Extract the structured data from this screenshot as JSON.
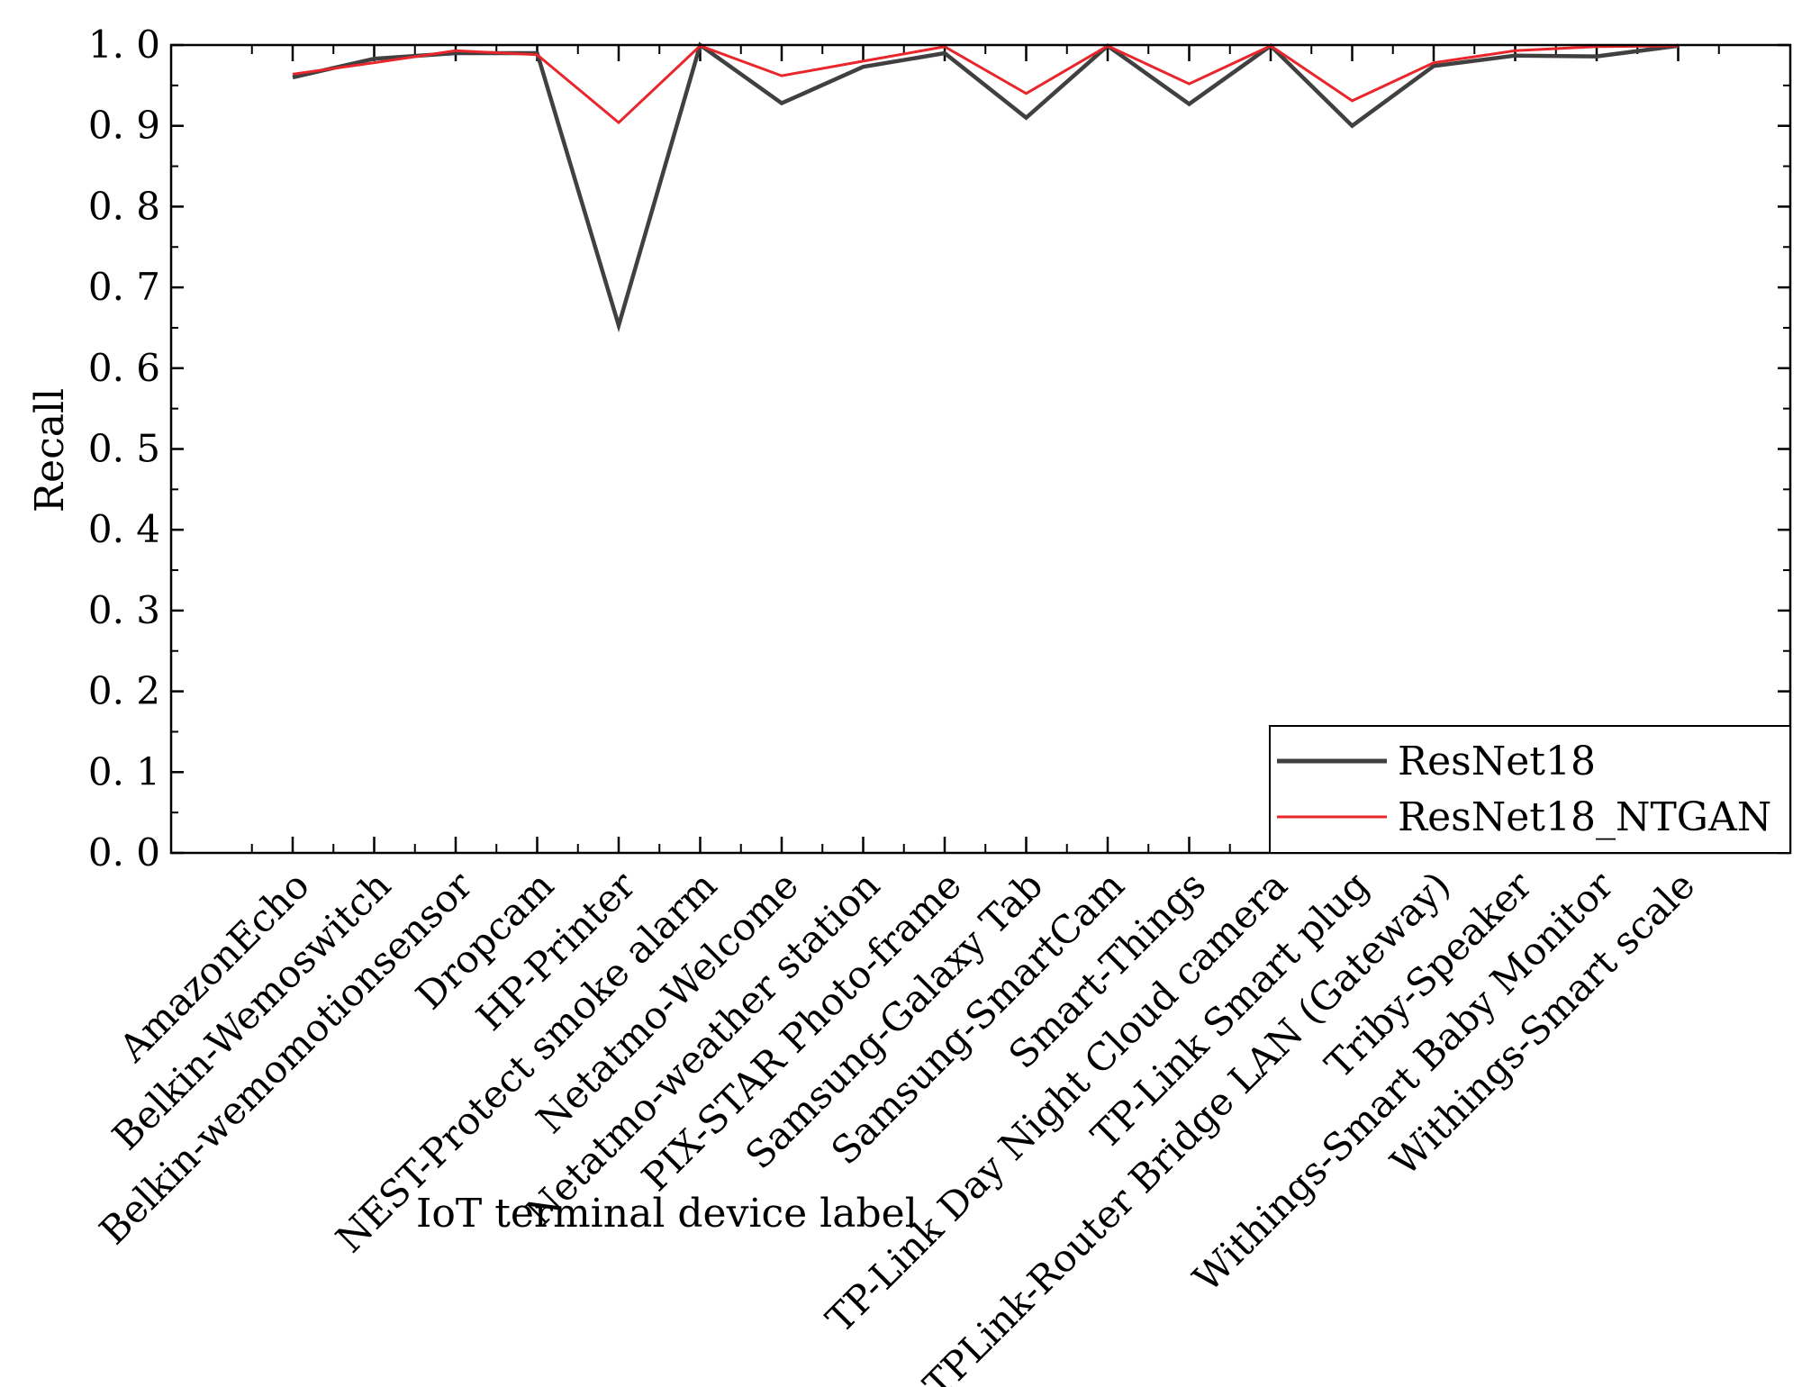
{
  "chart_data": {
    "type": "line",
    "title": "",
    "xlabel": "IoT terminal device label",
    "ylabel": "Recall",
    "ylim": [
      0,
      1.0
    ],
    "yticks": [
      0.0,
      0.1,
      0.2,
      0.3,
      0.4,
      0.5,
      0.6,
      0.7,
      0.8,
      0.9,
      1.0
    ],
    "ytick_labels": [
      "0. 0",
      "0. 1",
      "0. 2",
      "0. 3",
      "0. 4",
      "0. 5",
      "0. 6",
      "0. 7",
      "0. 8",
      "0. 9",
      "1. 0"
    ],
    "grid": false,
    "legend_position": "bottom-right",
    "categories": [
      "AmazonEcho",
      "Belkin-Wemoswitch",
      "Belkin-wemomotionsensor",
      "Dropcam",
      "HP-Printer",
      "NEST-Protect smoke alarm",
      "Netatmo-Welcome",
      "Netatmo-weather station",
      "PIX-STAR Photo-frame",
      "Samsung-Galaxy Tab",
      "Samsung-SmartCam",
      "Smart-Things",
      "TP-Link Day Night Cloud camera",
      "TP-Link Smart plug",
      "TPLink-Router Bridge LAN (Gateway)",
      "Triby-Speaker",
      "Withings-Smart Baby Monitor",
      "Withings-Smart scale"
    ],
    "series": [
      {
        "name": "ResNet18",
        "color": "#404040",
        "values": [
          0.96,
          0.983,
          0.99,
          0.99,
          0.653,
          1.0,
          0.928,
          0.973,
          0.99,
          0.91,
          0.999,
          0.927,
          0.999,
          0.9,
          0.974,
          0.987,
          0.986,
          0.999
        ]
      },
      {
        "name": "ResNet18_NTGAN",
        "color": "#e8262b",
        "values": [
          0.964,
          0.978,
          0.993,
          0.988,
          0.904,
          0.999,
          0.962,
          0.98,
          0.998,
          0.94,
          0.999,
          0.952,
          0.999,
          0.931,
          0.978,
          0.993,
          0.998,
          0.999
        ]
      }
    ]
  }
}
